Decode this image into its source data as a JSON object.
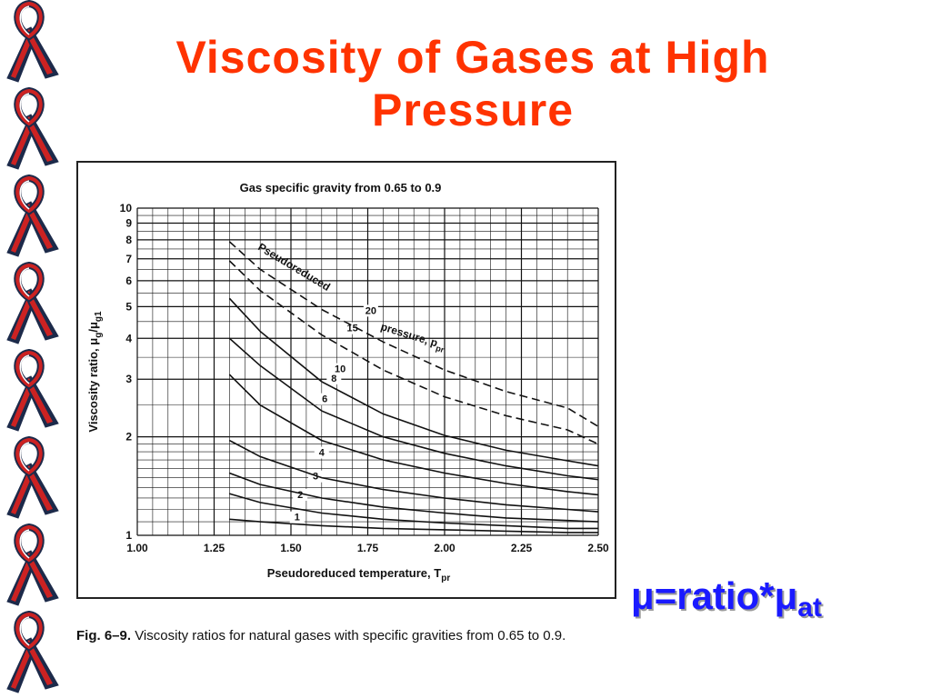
{
  "slide": {
    "title": "Viscosity of Gases at High Pressure",
    "title_color": "#ff3300",
    "ribbon_colors": [
      "#cc2222",
      "#1c2a4a",
      "#ffffff"
    ],
    "ribbon_count": 8
  },
  "caption": {
    "label": "Fig. 6–9.",
    "text": " Viscosity ratios for natural gases with specific gravities from 0.65 to 0.9."
  },
  "formula": {
    "main": "μ=ratio*μ",
    "subscript": "at",
    "color": "#1a1aff"
  },
  "chart_data": {
    "type": "line",
    "title": "Gas specific gravity from 0.65 to 0.9",
    "xlabel": "Pseudoreduced temperature, T",
    "xlabel_sub": "pr",
    "ylabel": "Viscosity ratio, μ",
    "ylabel_sub1": "g",
    "ylabel_mid": "/μ",
    "ylabel_sub2": "g1",
    "xlim": [
      1.0,
      2.5
    ],
    "ylim": [
      1,
      10
    ],
    "y_scale": "log",
    "grid": true,
    "x_ticks": [
      1.0,
      1.25,
      1.5,
      1.75,
      2.0,
      2.25,
      2.5
    ],
    "x_tick_labels": [
      "1.00",
      "1.25",
      "1.50",
      "1.75",
      "2.00",
      "2.25",
      "2.50"
    ],
    "y_ticks": [
      1,
      2,
      3,
      4,
      5,
      6,
      7,
      8,
      9,
      10
    ],
    "y_tick_labels": [
      "1",
      "2",
      "3",
      "4",
      "5",
      "6",
      "7",
      "8",
      "9",
      "10"
    ],
    "annotations": {
      "curve_family_label": "Pseudoreduced",
      "curve_family_label2": "pressure, p",
      "curve_family_label2_sub": "pr"
    },
    "series": [
      {
        "name": "1",
        "dashed": false,
        "x": [
          1.3,
          1.4,
          1.6,
          1.8,
          2.0,
          2.2,
          2.4,
          2.5
        ],
        "y": [
          1.12,
          1.1,
          1.07,
          1.05,
          1.04,
          1.03,
          1.02,
          1.02
        ],
        "label_at": [
          1.52,
          1.11
        ]
      },
      {
        "name": "2",
        "dashed": false,
        "x": [
          1.3,
          1.4,
          1.6,
          1.8,
          2.0,
          2.2,
          2.4,
          2.5
        ],
        "y": [
          1.34,
          1.26,
          1.17,
          1.12,
          1.09,
          1.07,
          1.05,
          1.05
        ],
        "label_at": [
          1.53,
          1.3
        ]
      },
      {
        "name": "3",
        "dashed": false,
        "x": [
          1.3,
          1.4,
          1.6,
          1.8,
          2.0,
          2.2,
          2.4,
          2.5
        ],
        "y": [
          1.55,
          1.43,
          1.3,
          1.22,
          1.17,
          1.13,
          1.11,
          1.1
        ],
        "label_at": [
          1.58,
          1.48
        ]
      },
      {
        "name": "4",
        "dashed": false,
        "x": [
          1.3,
          1.4,
          1.6,
          1.8,
          2.0,
          2.2,
          2.4,
          2.5
        ],
        "y": [
          1.95,
          1.74,
          1.5,
          1.38,
          1.3,
          1.24,
          1.2,
          1.18
        ],
        "label_at": [
          1.6,
          1.75
        ]
      },
      {
        "name": "6",
        "dashed": false,
        "x": [
          1.3,
          1.4,
          1.6,
          1.8,
          2.0,
          2.2,
          2.4,
          2.5
        ],
        "y": [
          3.1,
          2.5,
          1.95,
          1.7,
          1.55,
          1.44,
          1.36,
          1.33
        ],
        "label_at": [
          1.61,
          2.55
        ]
      },
      {
        "name": "8",
        "dashed": false,
        "x": [
          1.3,
          1.4,
          1.6,
          1.8,
          2.0,
          2.2,
          2.4,
          2.5
        ],
        "y": [
          4.0,
          3.3,
          2.4,
          2.0,
          1.78,
          1.63,
          1.52,
          1.48
        ],
        "label_at": [
          1.64,
          2.95
        ]
      },
      {
        "name": "10",
        "dashed": false,
        "x": [
          1.3,
          1.4,
          1.6,
          1.8,
          2.0,
          2.2,
          2.4,
          2.5
        ],
        "y": [
          5.3,
          4.2,
          2.95,
          2.35,
          2.02,
          1.82,
          1.69,
          1.63
        ],
        "label_at": [
          1.66,
          3.15
        ]
      },
      {
        "name": "15",
        "dashed": true,
        "x": [
          1.3,
          1.4,
          1.6,
          1.8,
          2.0,
          2.2,
          2.4,
          2.5
        ],
        "y": [
          6.9,
          5.6,
          4.1,
          3.2,
          2.65,
          2.32,
          2.1,
          1.9
        ],
        "label_at": [
          1.7,
          4.2
        ]
      },
      {
        "name": "20",
        "dashed": true,
        "x": [
          1.3,
          1.4,
          1.6,
          1.8,
          2.0,
          2.2,
          2.4,
          2.5
        ],
        "y": [
          7.9,
          6.5,
          4.9,
          3.9,
          3.2,
          2.75,
          2.45,
          2.15
        ],
        "label_at": [
          1.76,
          4.75
        ]
      }
    ]
  }
}
